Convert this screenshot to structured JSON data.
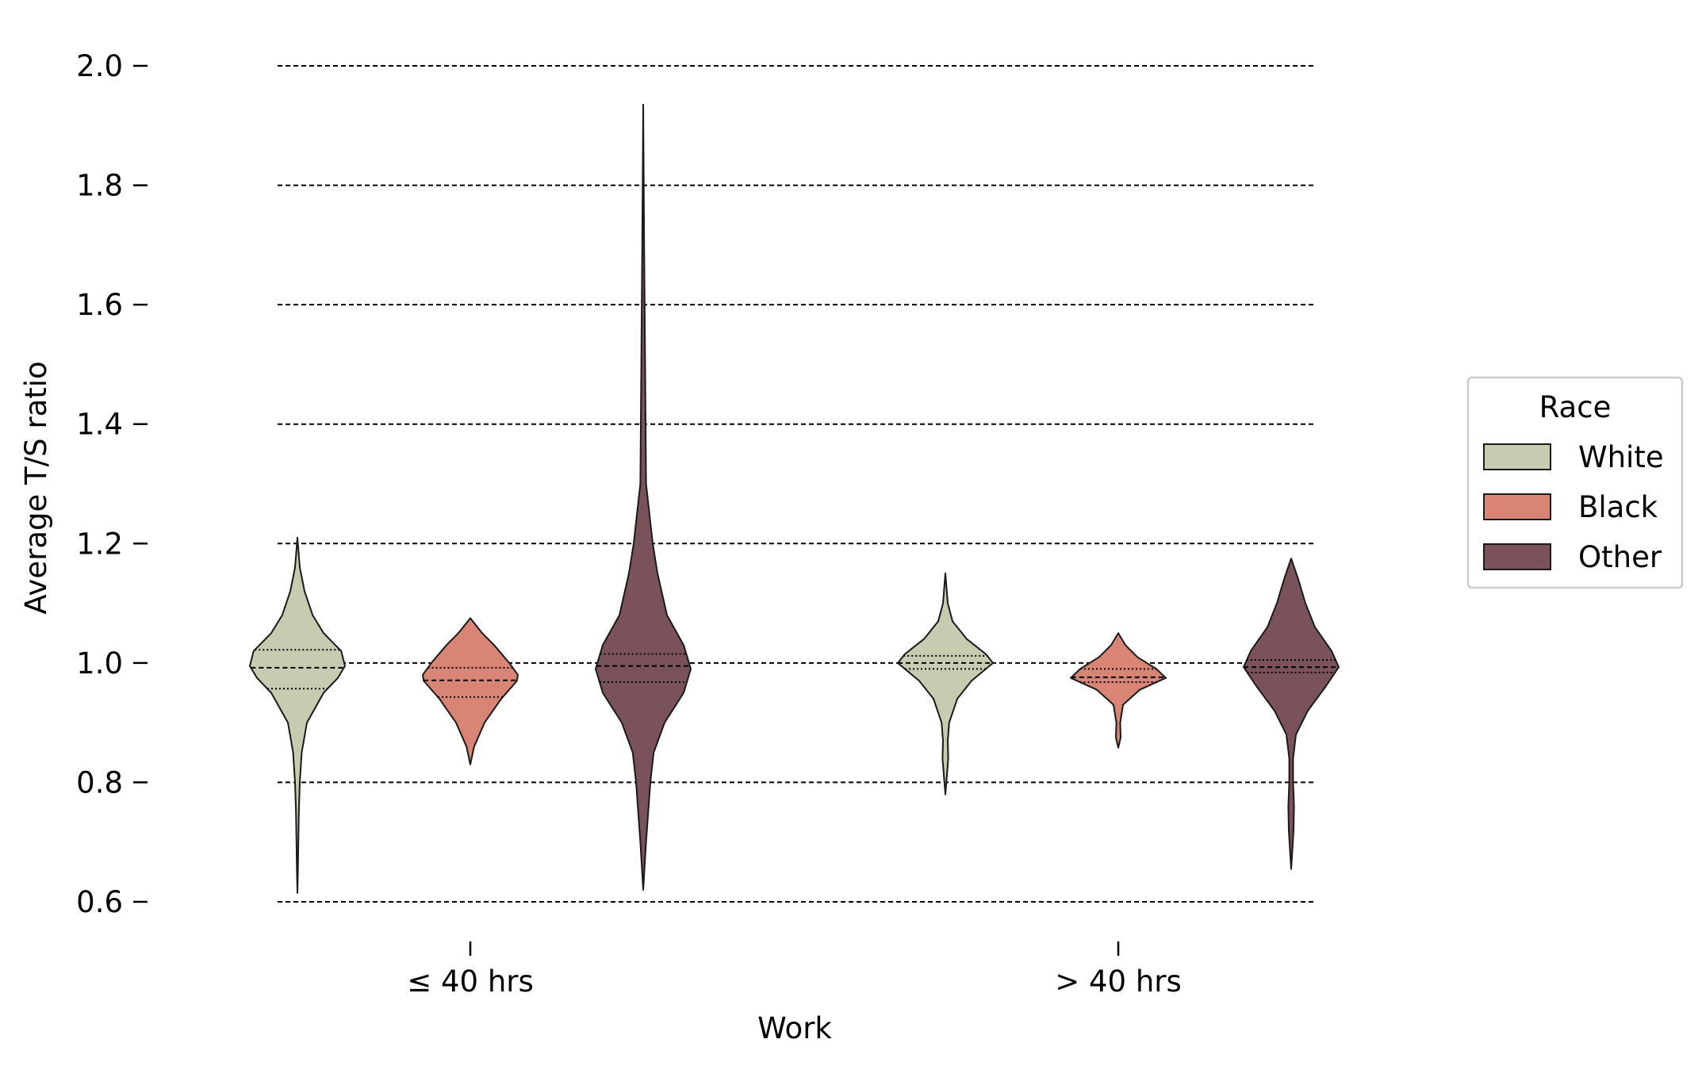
{
  "chart_data": {
    "type": "violin",
    "xlabel": "Work",
    "ylabel": "Average T/S ratio",
    "ylim": [
      0.6,
      2.0
    ],
    "yticks": [
      "0.6",
      "0.8",
      "1.0",
      "1.2",
      "1.4",
      "1.6",
      "1.8",
      "2.0"
    ],
    "grid": "horizontal dashed",
    "categories": [
      "≤ 40 hrs",
      "> 40 hrs"
    ],
    "legend": {
      "title": "Race",
      "placement": "right",
      "entries": [
        "White",
        "Black",
        "Other"
      ]
    },
    "series": [
      {
        "name": "White",
        "color": "#c8cbaf",
        "violins": [
          {
            "category": "≤ 40 hrs",
            "min": 0.615,
            "max": 1.21,
            "q1": 0.957,
            "median": 0.992,
            "q3": 1.022,
            "profile": [
              [
                0.615,
                0.0
              ],
              [
                0.65,
                0.01
              ],
              [
                0.7,
                0.02
              ],
              [
                0.75,
                0.03
              ],
              [
                0.8,
                0.05
              ],
              [
                0.85,
                0.09
              ],
              [
                0.9,
                0.2
              ],
              [
                0.95,
                0.55
              ],
              [
                0.975,
                0.85
              ],
              [
                0.995,
                1.0
              ],
              [
                1.02,
                0.92
              ],
              [
                1.05,
                0.55
              ],
              [
                1.08,
                0.32
              ],
              [
                1.12,
                0.15
              ],
              [
                1.16,
                0.05
              ],
              [
                1.21,
                0.0
              ]
            ]
          },
          {
            "category": "> 40 hrs",
            "min": 0.78,
            "max": 1.15,
            "q1": 0.99,
            "median": 1.0,
            "q3": 1.012,
            "profile": [
              [
                0.78,
                0.0
              ],
              [
                0.8,
                0.02
              ],
              [
                0.84,
                0.06
              ],
              [
                0.87,
                0.05
              ],
              [
                0.9,
                0.08
              ],
              [
                0.94,
                0.25
              ],
              [
                0.97,
                0.55
              ],
              [
                0.99,
                0.85
              ],
              [
                1.0,
                1.0
              ],
              [
                1.015,
                0.85
              ],
              [
                1.04,
                0.45
              ],
              [
                1.07,
                0.15
              ],
              [
                1.1,
                0.05
              ],
              [
                1.15,
                0.0
              ]
            ]
          }
        ]
      },
      {
        "name": "Black",
        "color": "#d88576",
        "violins": [
          {
            "category": "≤ 40 hrs",
            "min": 0.83,
            "max": 1.075,
            "q1": 0.943,
            "median": 0.971,
            "q3": 0.992,
            "profile": [
              [
                0.83,
                0.0
              ],
              [
                0.86,
                0.08
              ],
              [
                0.9,
                0.3
              ],
              [
                0.94,
                0.65
              ],
              [
                0.97,
                0.98
              ],
              [
                0.98,
                1.0
              ],
              [
                1.0,
                0.82
              ],
              [
                1.03,
                0.5
              ],
              [
                1.05,
                0.25
              ],
              [
                1.075,
                0.0
              ]
            ]
          },
          {
            "category": "> 40 hrs",
            "min": 0.858,
            "max": 1.05,
            "q1": 0.968,
            "median": 0.976,
            "q3": 0.99,
            "profile": [
              [
                0.858,
                0.0
              ],
              [
                0.875,
                0.05
              ],
              [
                0.9,
                0.04
              ],
              [
                0.93,
                0.1
              ],
              [
                0.955,
                0.45
              ],
              [
                0.975,
                1.0
              ],
              [
                0.99,
                0.8
              ],
              [
                1.01,
                0.4
              ],
              [
                1.03,
                0.15
              ],
              [
                1.05,
                0.0
              ]
            ]
          }
        ]
      },
      {
        "name": "Other",
        "color": "#7a535a",
        "violins": [
          {
            "category": "≤ 40 hrs",
            "min": 0.62,
            "max": 1.935,
            "q1": 0.968,
            "median": 0.995,
            "q3": 1.015,
            "profile": [
              [
                0.62,
                0.0
              ],
              [
                0.7,
                0.06
              ],
              [
                0.8,
                0.15
              ],
              [
                0.85,
                0.22
              ],
              [
                0.9,
                0.45
              ],
              [
                0.95,
                0.85
              ],
              [
                0.99,
                1.0
              ],
              [
                1.03,
                0.85
              ],
              [
                1.08,
                0.5
              ],
              [
                1.15,
                0.3
              ],
              [
                1.2,
                0.2
              ],
              [
                1.3,
                0.06
              ],
              [
                1.5,
                0.04
              ],
              [
                1.7,
                0.02
              ],
              [
                1.935,
                0.0
              ]
            ]
          },
          {
            "category": "> 40 hrs",
            "min": 0.655,
            "max": 1.175,
            "q1": 0.984,
            "median": 0.993,
            "q3": 1.005,
            "profile": [
              [
                0.655,
                0.0
              ],
              [
                0.68,
                0.02
              ],
              [
                0.72,
                0.05
              ],
              [
                0.76,
                0.06
              ],
              [
                0.8,
                0.04
              ],
              [
                0.84,
                0.04
              ],
              [
                0.88,
                0.1
              ],
              [
                0.92,
                0.35
              ],
              [
                0.96,
                0.72
              ],
              [
                0.993,
                1.0
              ],
              [
                1.02,
                0.85
              ],
              [
                1.06,
                0.5
              ],
              [
                1.1,
                0.3
              ],
              [
                1.14,
                0.15
              ],
              [
                1.175,
                0.0
              ]
            ]
          }
        ]
      }
    ]
  }
}
